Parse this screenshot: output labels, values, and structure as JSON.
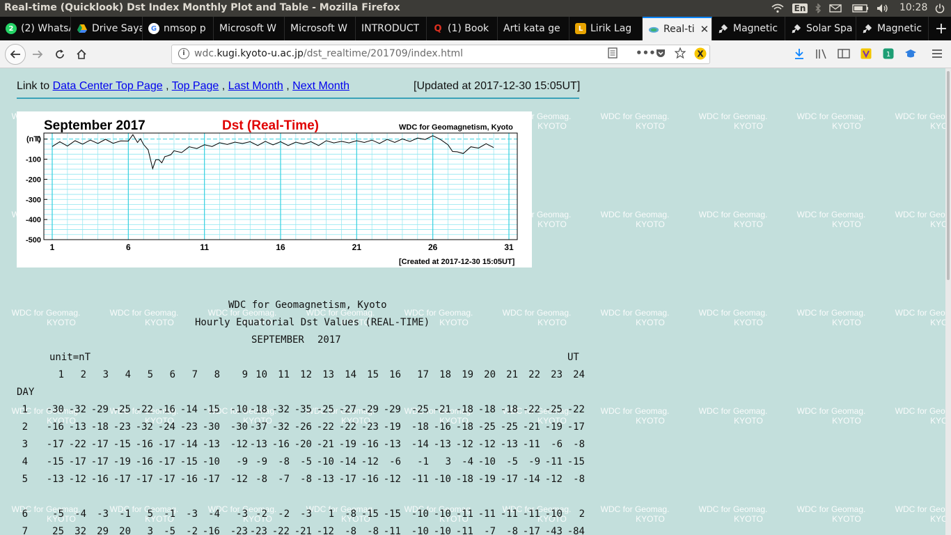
{
  "system": {
    "window_title": "Real-time (Quicklook) Dst Index Monthly Plot and Table - Mozilla Firefox",
    "keyboard_layout": "En",
    "clock": "10:28",
    "tray_icons": [
      "wifi-icon",
      "keyboard-icon",
      "bluetooth-icon",
      "mail-icon",
      "battery-icon",
      "volume-icon",
      "power-icon"
    ]
  },
  "tabs": [
    {
      "label": "(2) WhatsApp",
      "icon": "whatsapp-icon",
      "color": "#25d366",
      "active": false
    },
    {
      "label": "Drive Saya",
      "icon": "google-drive-icon",
      "color": "#f4b400",
      "active": false
    },
    {
      "label": "nmsop p",
      "icon": "google-icon",
      "color": "#ffffff",
      "active": false
    },
    {
      "label": "Microsoft W",
      "icon": "blank-page-icon",
      "color": "#0b0b0b",
      "active": false
    },
    {
      "label": "Microsoft W",
      "icon": "blank-page-icon",
      "color": "#0b0b0b",
      "active": false
    },
    {
      "label": "INTRODUCT",
      "icon": "blank-page-icon",
      "color": "#0b0b0b",
      "active": false
    },
    {
      "label": "(1) Book",
      "icon": "quora-icon",
      "color": "#b92b27",
      "active": false
    },
    {
      "label": "Arti kata ge",
      "icon": "blank-page-icon",
      "color": "#0b0b0b",
      "active": false
    },
    {
      "label": "Lirik Lag",
      "icon": "lirik-icon",
      "color": "#e8a400",
      "active": false
    },
    {
      "label": "Real-ti",
      "icon": "cloud-icon",
      "color": "#2e8b57",
      "active": true
    },
    {
      "label": "Magnetic",
      "icon": "satellite-icon",
      "color": "#333333",
      "active": false
    },
    {
      "label": "Solar Spa",
      "icon": "satellite-icon",
      "color": "#333333",
      "active": false
    },
    {
      "label": "Magnetic",
      "icon": "satellite-icon",
      "color": "#333333",
      "active": false
    }
  ],
  "navbar": {
    "url_plain_prefix": "wdc.",
    "url_domain": "kugi.kyoto-u.ac.jp",
    "url_path": "/dst_realtime/201709/index.html",
    "url_overflow": "•••"
  },
  "page": {
    "link_prefix": "Link to",
    "links": [
      "Data Center Top Page",
      "Top Page",
      "Last Month",
      "Next Month"
    ],
    "separator": ",",
    "updated": "[Updated at 2017-12-30 15:05UT]",
    "watermark": [
      "WDC for Geomag.",
      "KYOTO"
    ]
  },
  "plot": {
    "title_left": "September  2017",
    "title_center": "Dst (Real-Time)",
    "title_right": "WDC for Geomagnetism, Kyoto",
    "unit_label": "(nT)",
    "created": "[Created at 2017-12-30 15:05UT]",
    "accent_color": "#e00000",
    "grid_color": "#8fe6f0",
    "day_line_color": "#36d0e0"
  },
  "chart_data": {
    "type": "line",
    "title": "Dst (Real-Time)",
    "xlabel": "",
    "ylabel": "(nT)",
    "y_ticks": [
      0,
      -100,
      -200,
      -300,
      -400,
      -500
    ],
    "x_ticks": [
      1,
      6,
      11,
      16,
      21,
      26,
      31
    ],
    "ylim": [
      -500,
      30
    ],
    "xlim": [
      1,
      31
    ],
    "grid": true,
    "x": [
      1,
      1.5,
      2,
      2.5,
      3,
      3.5,
      4,
      4.5,
      5,
      5.5,
      6,
      6.3,
      6.6,
      6.8,
      7,
      7.3,
      7.6,
      7.8,
      8,
      8.2,
      8.4,
      8.6,
      8.8,
      9,
      9.5,
      10,
      10.5,
      11,
      11.5,
      12,
      12.5,
      13,
      13.5,
      14,
      14.5,
      15,
      15.5,
      16,
      16.5,
      17,
      17.5,
      18,
      18.5,
      19,
      19.5,
      20,
      20.5,
      21,
      21.5,
      22,
      22.5,
      23,
      23.5,
      24,
      24.5,
      25,
      25.5,
      26,
      26.5,
      27,
      27.3,
      27.6,
      28,
      28.5,
      29,
      29.5,
      30
    ],
    "y": [
      -30,
      -20,
      -28,
      -15,
      -18,
      -12,
      -15,
      -8,
      -14,
      -16,
      -3,
      15,
      -10,
      -5,
      -20,
      -60,
      -140,
      -110,
      -95,
      -125,
      -80,
      -90,
      -70,
      -65,
      -60,
      -45,
      -40,
      -35,
      -30,
      -25,
      -20,
      -22,
      -15,
      -20,
      -25,
      -18,
      -22,
      -20,
      -25,
      -22,
      -18,
      -20,
      -25,
      -15,
      -12,
      -18,
      -12,
      -15,
      -10,
      -12,
      -15,
      -8,
      -10,
      -6,
      -5,
      -2,
      5,
      10,
      5,
      -35,
      -55,
      -70,
      -65,
      -45,
      -38,
      -30,
      -35
    ]
  },
  "table": {
    "header_title": "WDC for Geomagnetism, Kyoto",
    "header_subtitle": "Hourly Equatorial Dst Values (REAL-TIME)",
    "month": "SEPTEMBER",
    "year": "2017",
    "unit": "unit=nT",
    "ut": "UT",
    "day_label": "DAY",
    "hours": [
      "1",
      "2",
      "3",
      "4",
      "5",
      "6",
      "7",
      "8",
      "9",
      "10",
      "11",
      "12",
      "13",
      "14",
      "15",
      "16",
      "17",
      "18",
      "19",
      "20",
      "21",
      "22",
      "23",
      "24"
    ],
    "rows": [
      {
        "day": "1",
        "values": [
          "-30",
          "-32",
          "-29",
          "-25",
          "-22",
          "-16",
          "-14",
          "-15",
          "-10",
          "-18",
          "-32",
          "-35",
          "-25",
          "-27",
          "-29",
          "-29",
          "-25",
          "-21",
          "-18",
          "-18",
          "-18",
          "-22",
          "-25",
          "-22"
        ]
      },
      {
        "day": "2",
        "values": [
          "-16",
          "-13",
          "-18",
          "-23",
          "-32",
          "-24",
          "-23",
          "-30",
          "-30",
          "-37",
          "-32",
          "-26",
          "-22",
          "-22",
          "-23",
          "-19",
          "-18",
          "-16",
          "-18",
          "-25",
          "-25",
          "-21",
          "-19",
          "-17"
        ]
      },
      {
        "day": "3",
        "values": [
          "-17",
          "-22",
          "-17",
          "-15",
          "-16",
          "-17",
          "-14",
          "-13",
          "-12",
          "-13",
          "-16",
          "-20",
          "-21",
          "-19",
          "-16",
          "-13",
          "-14",
          "-13",
          "-12",
          "-12",
          "-13",
          "-11",
          "-6",
          "-8"
        ]
      },
      {
        "day": "4",
        "values": [
          "-15",
          "-17",
          "-17",
          "-19",
          "-16",
          "-17",
          "-15",
          "-10",
          "-9",
          "-9",
          "-8",
          "-5",
          "-10",
          "-14",
          "-12",
          "-6",
          "-1",
          "3",
          "-4",
          "-10",
          "-5",
          "-9",
          "-11",
          "-15"
        ]
      },
      {
        "day": "5",
        "values": [
          "-13",
          "-12",
          "-16",
          "-17",
          "-17",
          "-17",
          "-16",
          "-17",
          "-12",
          "-8",
          "-7",
          "-8",
          "-13",
          "-17",
          "-16",
          "-12",
          "-11",
          "-10",
          "-18",
          "-19",
          "-17",
          "-14",
          "-12",
          "-8"
        ]
      },
      {
        "day": "6",
        "values": [
          "-5",
          "-4",
          "-3",
          "-1",
          "5",
          "-1",
          "-3",
          "-4",
          "-3",
          "-2",
          "-2",
          "-3",
          "1",
          "-8",
          "-15",
          "-15",
          "-10",
          "-10",
          "-11",
          "-11",
          "-11",
          "-11",
          "-10",
          "2"
        ]
      },
      {
        "day": "7",
        "values": [
          "25",
          "32",
          "29",
          "20",
          "3",
          "-5",
          "-2",
          "-16",
          "-23",
          "-23",
          "-22",
          "-21",
          "-12",
          "-8",
          "-8",
          "-11",
          "-10",
          "-10",
          "-11",
          "-7",
          "-8",
          "-17",
          "-43",
          "-84"
        ]
      }
    ]
  }
}
